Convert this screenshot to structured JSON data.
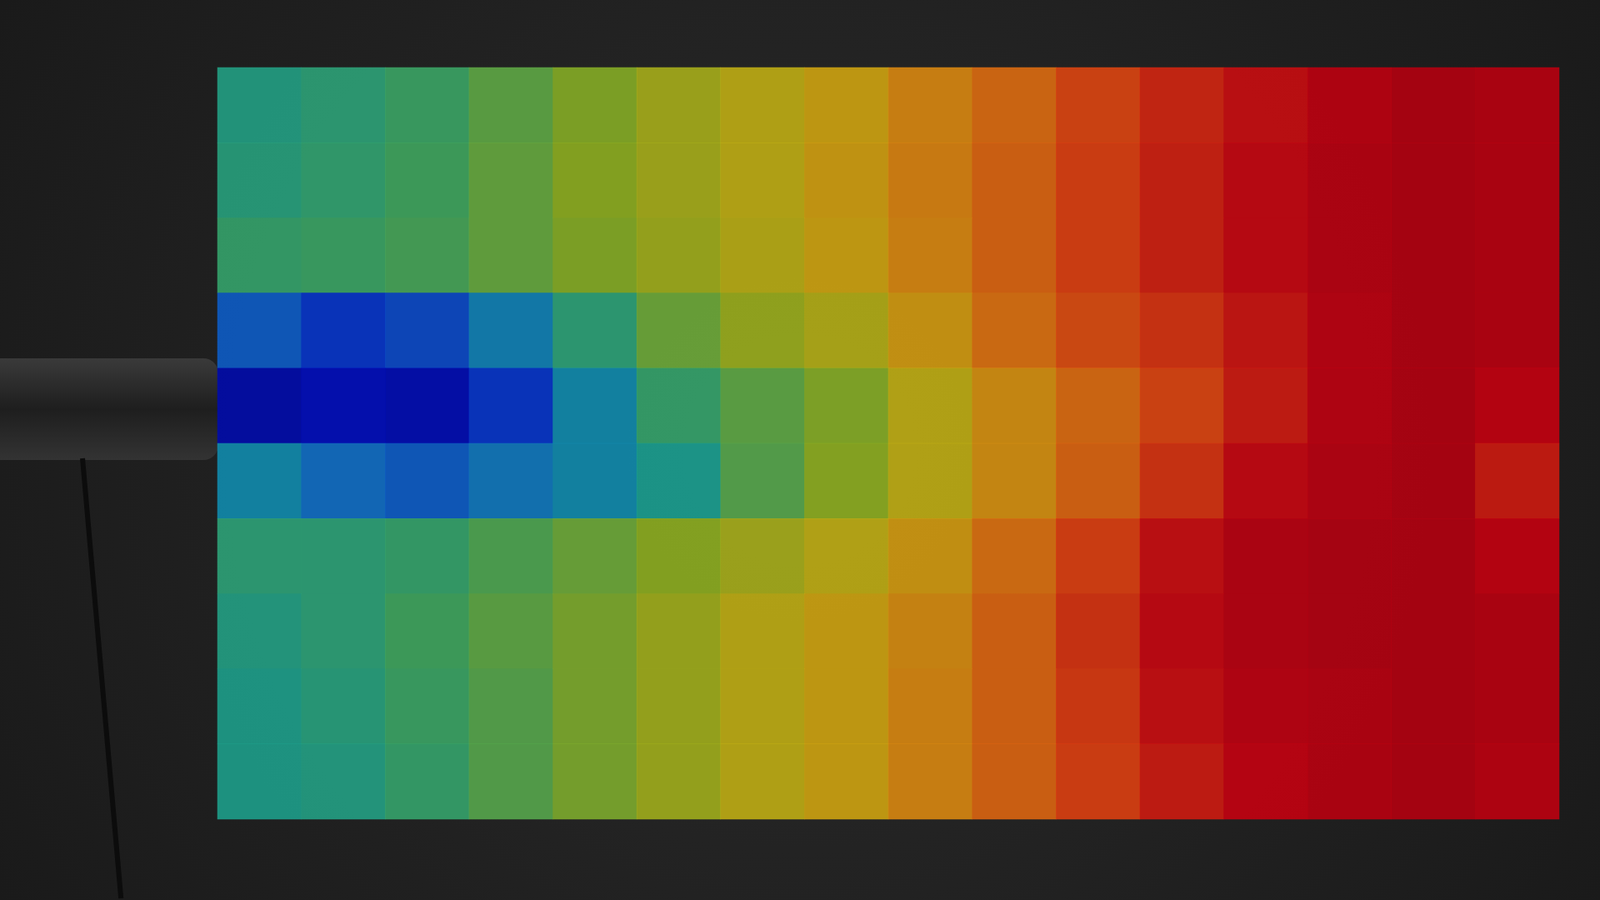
{
  "chart_data": {
    "type": "heatmap",
    "tick_labels": false,
    "grid": false,
    "color_range": [
      0,
      10
    ],
    "values": [
      [
        3.4,
        3.6,
        3.9,
        4.4,
        4.9,
        5.4,
        5.8,
        6.2,
        6.8,
        7.3,
        7.9,
        8.4,
        8.8,
        9.1,
        9.3,
        9.2
      ],
      [
        3.5,
        3.7,
        4.0,
        4.5,
        5.0,
        5.4,
        5.8,
        6.3,
        6.9,
        7.4,
        8.0,
        8.5,
        8.9,
        9.2,
        9.3,
        9.2
      ],
      [
        3.8,
        3.9,
        4.1,
        4.5,
        4.9,
        5.3,
        5.7,
        6.2,
        6.8,
        7.4,
        8.0,
        8.5,
        8.9,
        9.2,
        9.3,
        9.2
      ],
      [
        1.8,
        1.4,
        1.6,
        2.4,
        3.6,
        4.6,
        5.2,
        5.6,
        6.4,
        7.2,
        7.8,
        8.2,
        8.7,
        9.1,
        9.3,
        9.2
      ],
      [
        0.6,
        0.8,
        0.7,
        1.4,
        2.6,
        3.8,
        4.4,
        4.9,
        5.8,
        6.6,
        7.3,
        7.9,
        8.6,
        9.1,
        9.3,
        9.0
      ],
      [
        2.6,
        2.0,
        1.8,
        2.2,
        2.6,
        3.2,
        4.3,
        5.0,
        5.8,
        6.6,
        7.4,
        8.2,
        8.9,
        9.2,
        9.3,
        8.6
      ],
      [
        3.6,
        3.6,
        3.8,
        4.2,
        4.6,
        5.0,
        5.4,
        5.8,
        6.4,
        7.2,
        8.0,
        8.8,
        9.2,
        9.3,
        9.3,
        9.0
      ],
      [
        3.4,
        3.6,
        4.0,
        4.4,
        4.8,
        5.3,
        5.8,
        6.2,
        6.7,
        7.4,
        8.2,
        8.9,
        9.2,
        9.3,
        9.3,
        9.2
      ],
      [
        3.3,
        3.5,
        3.9,
        4.3,
        4.8,
        5.3,
        5.8,
        6.2,
        6.8,
        7.4,
        8.1,
        8.8,
        9.1,
        9.2,
        9.3,
        9.2
      ],
      [
        3.3,
        3.4,
        3.8,
        4.3,
        4.8,
        5.3,
        5.8,
        6.2,
        6.8,
        7.4,
        8.0,
        8.6,
        9.0,
        9.2,
        9.3,
        9.1
      ]
    ]
  }
}
